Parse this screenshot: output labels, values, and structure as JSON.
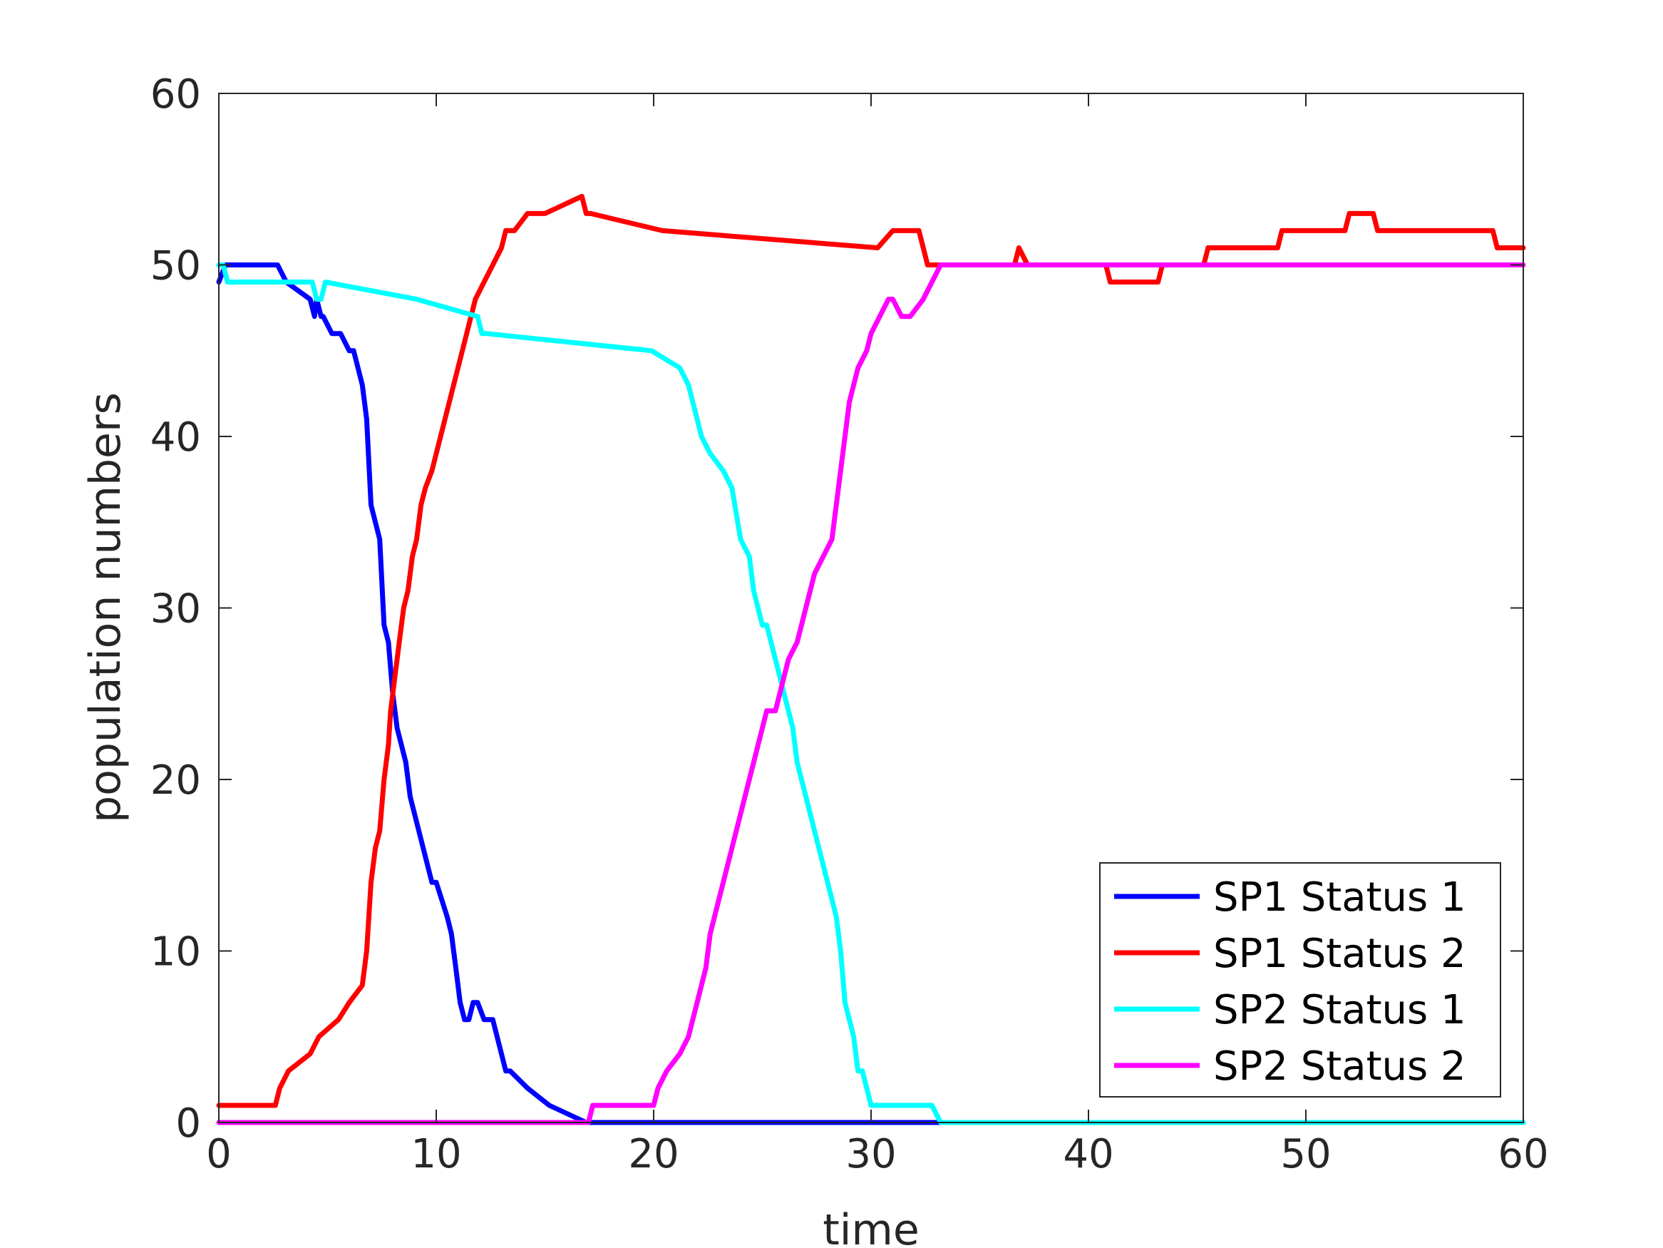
{
  "chart_data": {
    "type": "line",
    "title": "",
    "xlabel": "time",
    "ylabel": "population numbers",
    "xlim": [
      0,
      60
    ],
    "ylim": [
      0,
      60
    ],
    "xticks": [
      0,
      10,
      20,
      30,
      40,
      50,
      60
    ],
    "yticks": [
      0,
      10,
      20,
      30,
      40,
      50,
      60
    ],
    "grid": false,
    "legend_position": "bottom-right",
    "series": [
      {
        "name": "SP1 Status 1",
        "color": "#0000ff",
        "x": [
          0,
          0.3,
          2.7,
          3.1,
          4.2,
          4.4,
          4.5,
          4.7,
          4.8,
          5.2,
          5.6,
          6.0,
          6.2,
          6.4,
          6.6,
          6.8,
          7.0,
          7.2,
          7.4,
          7.6,
          7.8,
          8.0,
          8.2,
          8.4,
          8.6,
          8.8,
          9.0,
          9.2,
          9.4,
          9.6,
          9.8,
          10.0,
          10.5,
          10.7,
          10.9,
          11.1,
          11.3,
          11.5,
          11.7,
          11.9,
          12.2,
          12.6,
          13.0,
          13.2,
          13.4,
          14.2,
          15.2,
          16.9,
          30.0,
          33.0,
          60.0
        ],
        "y": [
          49,
          50,
          50,
          49,
          48,
          47,
          48,
          47,
          47,
          46,
          46,
          45,
          45,
          44,
          43,
          41,
          36,
          35,
          34,
          29,
          28,
          25,
          23,
          22,
          21,
          19,
          18,
          17,
          16,
          15,
          14,
          14,
          12,
          11,
          9,
          7,
          6,
          6,
          7,
          7,
          6,
          6,
          4,
          3,
          3,
          2,
          1,
          0,
          0,
          0,
          0
        ]
      },
      {
        "name": "SP1 Status 2",
        "color": "#ff0000",
        "x": [
          0,
          2.6,
          2.8,
          3.2,
          4.2,
          4.6,
          5.5,
          6.0,
          6.6,
          6.8,
          7.0,
          7.2,
          7.4,
          7.6,
          7.8,
          7.9,
          8.1,
          8.3,
          8.5,
          8.7,
          8.9,
          9.1,
          9.3,
          9.5,
          9.8,
          10.2,
          10.6,
          10.8,
          11.0,
          11.2,
          11.4,
          11.6,
          11.8,
          12.2,
          12.6,
          13.0,
          13.2,
          13.6,
          14.2,
          15.0,
          16.7,
          16.9,
          17.1,
          20.4,
          30.3,
          31.0,
          32.2,
          32.6,
          33.0,
          36.6,
          36.8,
          37.2,
          37.4,
          40.8,
          41.0,
          43.2,
          43.4,
          45.3,
          45.5,
          48.7,
          48.9,
          51.8,
          52.0,
          53.1,
          53.3,
          58.6,
          58.8,
          60.0
        ],
        "y": [
          1,
          1,
          2,
          3,
          4,
          5,
          6,
          7,
          8,
          10,
          14,
          16,
          17,
          20,
          22,
          24,
          26,
          28,
          30,
          31,
          33,
          34,
          36,
          37,
          38,
          40,
          42,
          43,
          44,
          45,
          46,
          47,
          48,
          49,
          50,
          51,
          52,
          52,
          53,
          53,
          54,
          53,
          53,
          52,
          51,
          52,
          52,
          50,
          50,
          50,
          51,
          50,
          50,
          50,
          49,
          49,
          50,
          50,
          51,
          51,
          52,
          52,
          53,
          53,
          52,
          52,
          51,
          51
        ]
      },
      {
        "name": "SP2 Status 1",
        "color": "#00ffff",
        "x": [
          0,
          0.2,
          0.4,
          4.3,
          4.5,
          4.7,
          4.9,
          9.1,
          11.9,
          12.1,
          12.3,
          19.9,
          21.2,
          21.6,
          21.8,
          22.0,
          22.2,
          22.6,
          23.2,
          23.6,
          24.0,
          24.4,
          24.6,
          24.8,
          25.0,
          25.2,
          25.4,
          25.6,
          26.0,
          26.2,
          26.4,
          26.6,
          26.8,
          27.0,
          27.2,
          27.4,
          27.6,
          27.8,
          28.0,
          28.2,
          28.4,
          28.6,
          28.8,
          29.0,
          29.2,
          29.4,
          29.6,
          29.8,
          30.0,
          30.6,
          31.0,
          32.8,
          33.2,
          60.0
        ],
        "y": [
          50,
          50,
          49,
          49,
          48,
          48,
          49,
          48,
          47,
          46,
          46,
          45,
          44,
          43,
          42,
          41,
          40,
          39,
          38,
          37,
          34,
          33,
          31,
          30,
          29,
          29,
          28,
          27,
          25,
          24,
          23,
          21,
          20,
          19,
          18,
          17,
          16,
          15,
          14,
          13,
          12,
          10,
          7,
          6,
          5,
          3,
          3,
          2,
          1,
          1,
          1,
          1,
          0,
          0
        ]
      },
      {
        "name": "SP2 Status 2",
        "color": "#ff00ff",
        "x": [
          0,
          17.0,
          17.2,
          20.0,
          20.2,
          20.6,
          21.2,
          21.6,
          21.8,
          22.0,
          22.2,
          22.4,
          22.6,
          23.0,
          23.4,
          23.8,
          24.0,
          24.2,
          24.4,
          24.6,
          24.8,
          25.2,
          25.6,
          25.8,
          26.0,
          26.2,
          26.6,
          26.8,
          27.0,
          27.2,
          27.4,
          27.8,
          28.2,
          28.4,
          28.6,
          28.8,
          29.0,
          29.2,
          29.4,
          29.8,
          30.0,
          30.4,
          30.8,
          31.0,
          31.4,
          31.8,
          32.4,
          32.8,
          33.2,
          60.0
        ],
        "y": [
          0,
          0,
          1,
          1,
          2,
          3,
          4,
          5,
          6,
          7,
          8,
          9,
          11,
          13,
          15,
          17,
          18,
          19,
          20,
          21,
          22,
          24,
          24,
          25,
          26,
          27,
          28,
          29,
          30,
          31,
          32,
          33,
          34,
          36,
          38,
          40,
          42,
          43,
          44,
          45,
          46,
          47,
          48,
          48,
          47,
          47,
          48,
          49,
          50,
          50
        ]
      }
    ]
  }
}
